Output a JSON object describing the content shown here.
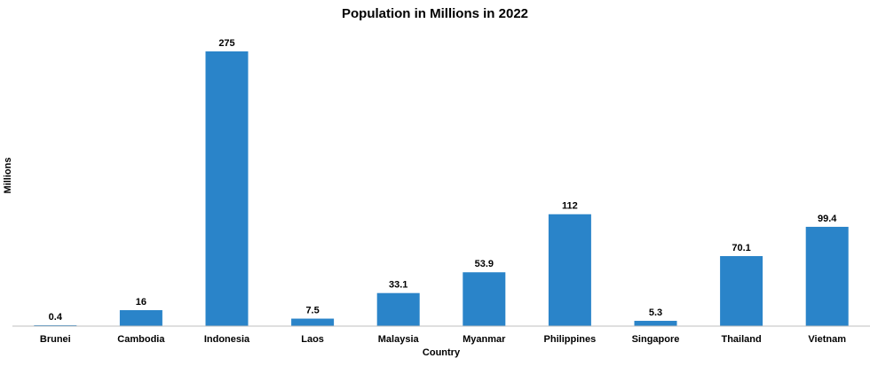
{
  "chart_data": {
    "type": "bar",
    "title": "Population in Millions in 2022",
    "xlabel": "Country",
    "ylabel": "Millions",
    "categories": [
      "Brunei",
      "Cambodia",
      "Indonesia",
      "Laos",
      "Malaysia",
      "Myanmar",
      "Philippines",
      "Singapore",
      "Thailand",
      "Vietnam"
    ],
    "values": [
      0.4,
      16,
      275,
      7.5,
      33.1,
      53.9,
      112,
      5.3,
      70.1,
      99.4
    ],
    "data_labels": [
      "0.4",
      "16",
      "275",
      "7.5",
      "33.1",
      "53.9",
      "112",
      "5.3",
      "70.1",
      "99.4"
    ],
    "ylim": [
      0,
      275
    ],
    "grid": false,
    "legend": "none",
    "bar_color": "#2a84c9",
    "axis_color": "#bfbfbf"
  }
}
